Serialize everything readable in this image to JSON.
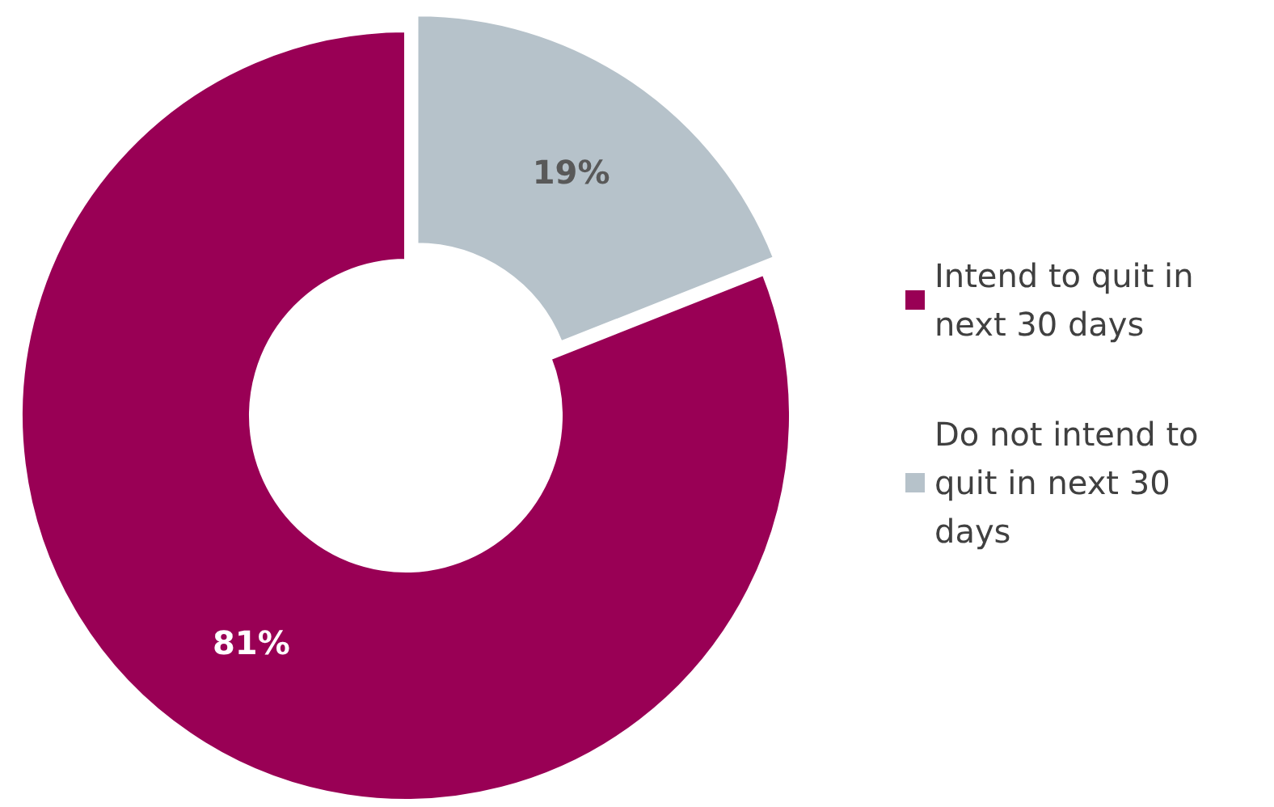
{
  "chart_data": {
    "type": "donut",
    "categories": [
      "Intend to quit in next 30 days",
      "Do not intend to quit in next 30 days"
    ],
    "values": [
      81,
      19
    ],
    "colors": [
      "#990055",
      "#b6c2ca"
    ],
    "value_labels": [
      "81%",
      "19%"
    ],
    "legend": "right"
  }
}
